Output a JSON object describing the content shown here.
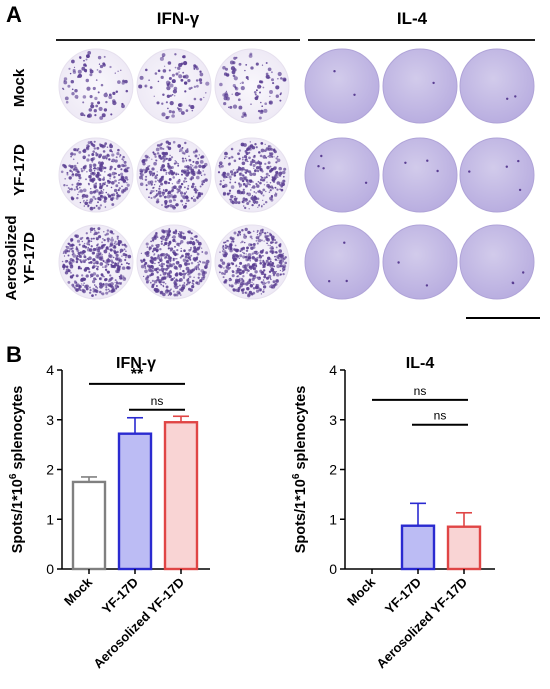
{
  "panelA": {
    "label": "A",
    "group_labels": [
      "IFN-γ",
      "IL-4"
    ],
    "row_labels": [
      "Mock",
      "YF-17D",
      "Aerosolized YF-17D"
    ],
    "row_label_lines": [
      [
        "Mock"
      ],
      [
        "YF-17D"
      ],
      [
        "Aerosolized",
        "YF-17D"
      ]
    ],
    "row_density": [
      0.15,
      0.75,
      1.0
    ],
    "il4_spots": [
      1,
      3,
      2
    ],
    "well_colors": {
      "ifn_bg": "#f6f3fa",
      "il4_bg": "#c9c0e6",
      "spot": "#5a3e92"
    }
  },
  "panelB": {
    "label": "B"
  },
  "chart_data": [
    {
      "type": "bar",
      "title": "IFN-γ",
      "ylabel": "Spots/1*10^6 splenocytes",
      "ylim": [
        0,
        4
      ],
      "yticks": [
        0,
        1,
        2,
        3,
        4
      ],
      "categories": [
        "Mock",
        "YF-17D",
        "Aerosolized YF-17D"
      ],
      "values": [
        1.75,
        2.72,
        2.95
      ],
      "errors": [
        0.1,
        0.32,
        0.12
      ],
      "colors": [
        "#808080",
        "#2a2ad0",
        "#e04545"
      ],
      "fills": [
        "#ffffff",
        "#bcbcf4",
        "#f9d4d4"
      ],
      "significance": [
        {
          "from": "Mock",
          "to": "Aerosolized YF-17D",
          "label": "**",
          "y": 3.72
        },
        {
          "from": "YF-17D",
          "to": "Aerosolized YF-17D",
          "label": "ns",
          "y": 3.2
        }
      ]
    },
    {
      "type": "bar",
      "title": "IL-4",
      "ylabel": "Spots/1*10^6 splenocytes",
      "ylim": [
        0,
        4
      ],
      "yticks": [
        0,
        1,
        2,
        3,
        4
      ],
      "categories": [
        "Mock",
        "YF-17D",
        "Aerosolized YF-17D"
      ],
      "values": [
        0,
        0.87,
        0.85
      ],
      "errors": [
        0,
        0.45,
        0.28
      ],
      "colors": [
        "#808080",
        "#2a2ad0",
        "#e04545"
      ],
      "fills": [
        "#ffffff",
        "#bcbcf4",
        "#f9d4d4"
      ],
      "significance": [
        {
          "from": "Mock",
          "to": "Aerosolized YF-17D",
          "label": "ns",
          "y": 3.4
        },
        {
          "from": "YF-17D",
          "to": "Aerosolized YF-17D",
          "label": "ns",
          "y": 2.9
        }
      ]
    }
  ]
}
